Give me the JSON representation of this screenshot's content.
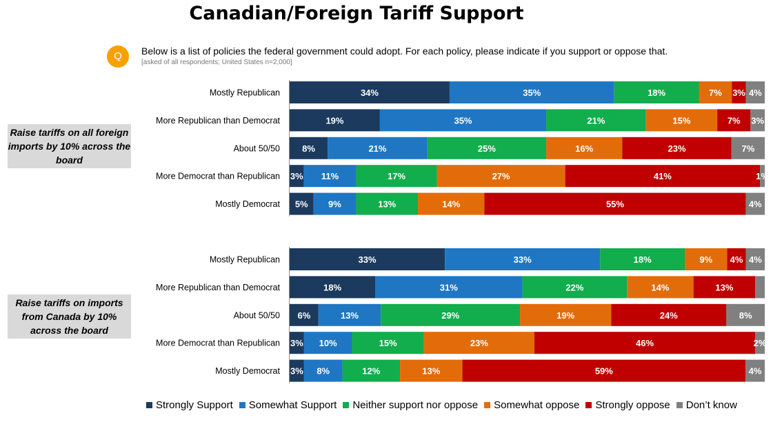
{
  "title": "Canadian/Foreign Tariff Support",
  "question_icon": "Q",
  "question": "Below is a list of policies the federal government could adopt.  For each policy, please indicate if you support or oppose that.",
  "note": "[asked of all respondents; United States n=2,000]",
  "colors": {
    "strongly_support": "#1b3a5e",
    "somewhat_support": "#1f77c4",
    "neither": "#12ad4d",
    "somewhat_oppose": "#e36c0a",
    "strongly_oppose": "#c00000",
    "dont_know": "#808080"
  },
  "chart_data": {
    "type": "bar",
    "orientation": "horizontal",
    "stacked": "100%",
    "series_names": [
      "Strongly Support",
      "Somewhat Support",
      "Neither support nor oppose",
      "Somewhat oppose",
      "Strongly oppose",
      "Don’t know"
    ],
    "groups": [
      {
        "label": "Raise tariffs on all foreign imports by 10% across the board",
        "rows": [
          {
            "category": "Mostly Republican",
            "values": [
              34,
              35,
              18,
              7,
              3,
              4
            ],
            "labels": [
              "34%",
              "35%",
              "18%",
              "7%",
              "3%",
              "4%"
            ]
          },
          {
            "category": "More Republican than Democrat",
            "values": [
              19,
              35,
              21,
              15,
              7,
              3
            ],
            "labels": [
              "19%",
              "35%",
              "21%",
              "15%",
              "7%",
              "3%"
            ]
          },
          {
            "category": "About 50/50",
            "values": [
              8,
              21,
              25,
              16,
              23,
              7
            ],
            "labels": [
              "8%",
              "21%",
              "25%",
              "16%",
              "23%",
              "7%"
            ]
          },
          {
            "category": "More Democrat than Republican",
            "values": [
              3,
              11,
              17,
              27,
              41,
              1
            ],
            "labels": [
              "3%",
              "11%",
              "17%",
              "27%",
              "41%",
              "1%"
            ]
          },
          {
            "category": "Mostly Democrat",
            "values": [
              5,
              9,
              13,
              14,
              55,
              4
            ],
            "labels": [
              "5%",
              "9%",
              "13%",
              "14%",
              "55%",
              "4%"
            ]
          }
        ]
      },
      {
        "label": "Raise tariffs on imports from Canada by 10% across the board",
        "rows": [
          {
            "category": "Mostly Republican",
            "values": [
              33,
              33,
              18,
              9,
              4,
              4
            ],
            "labels": [
              "33%",
              "33%",
              "18%",
              "9%",
              "4%",
              "4%"
            ]
          },
          {
            "category": "More Republican than Democrat",
            "values": [
              18,
              31,
              22,
              14,
              13,
              2
            ],
            "labels": [
              "18%",
              "31%",
              "22%",
              "14%",
              "13%",
              ""
            ]
          },
          {
            "category": "About 50/50",
            "values": [
              6,
              13,
              29,
              19,
              24,
              8
            ],
            "labels": [
              "6%",
              "13%",
              "29%",
              "19%",
              "24%",
              "8%"
            ]
          },
          {
            "category": "More Democrat than Republican",
            "values": [
              3,
              10,
              15,
              23,
              46,
              2
            ],
            "labels": [
              "3%",
              "10%",
              "15%",
              "23%",
              "46%",
              "2%"
            ]
          },
          {
            "category": "Mostly Democrat",
            "values": [
              3,
              8,
              12,
              13,
              59,
              4
            ],
            "labels": [
              "3%",
              "8%",
              "12%",
              "13%",
              "59%",
              "4%"
            ]
          }
        ]
      }
    ],
    "xlim": [
      0,
      100
    ],
    "legend_position": "bottom"
  }
}
